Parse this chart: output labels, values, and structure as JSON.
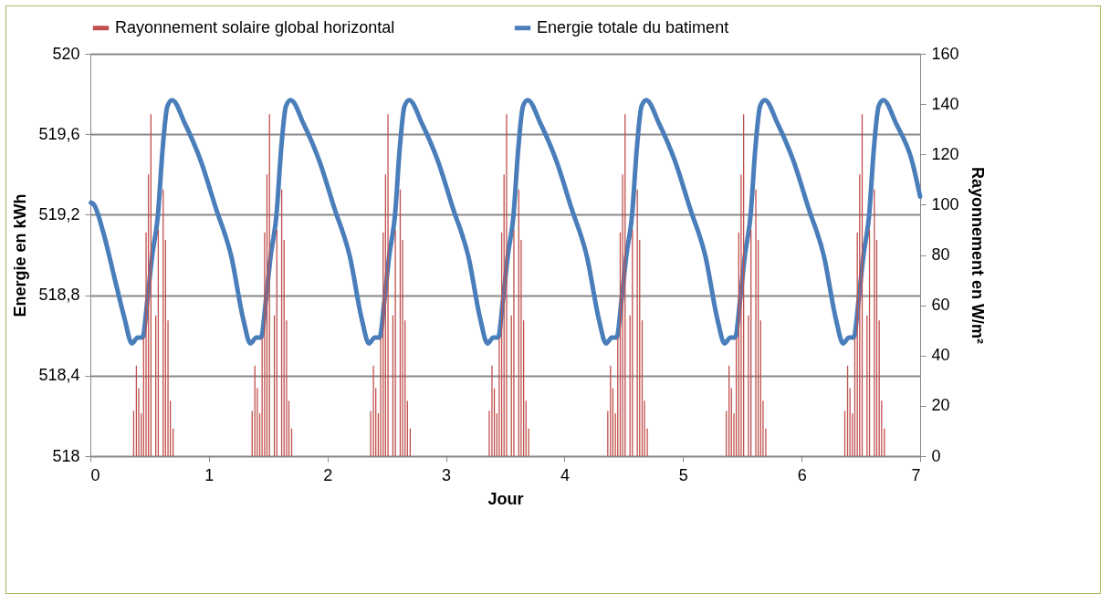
{
  "chart_data": {
    "type": "line",
    "xlabel": "Jour",
    "ylabel": "Energie en kWh",
    "y2label": "Rayonnement en W/m²",
    "xlim": [
      0,
      7
    ],
    "xticks": [
      0,
      1,
      2,
      3,
      4,
      5,
      6,
      7
    ],
    "ylim": [
      518,
      520
    ],
    "yticks": [
      {
        "value": 518,
        "label": "518"
      },
      {
        "value": 518.4,
        "label": "518,4"
      },
      {
        "value": 518.8,
        "label": "518,8"
      },
      {
        "value": 519.2,
        "label": "519,2"
      },
      {
        "value": 519.6,
        "label": "519,6"
      },
      {
        "value": 520,
        "label": "520"
      }
    ],
    "y2lim": [
      0,
      160
    ],
    "y2ticks": [
      0,
      20,
      40,
      60,
      80,
      100,
      120,
      140,
      160
    ],
    "grid": "y",
    "legend": "top",
    "series": [
      {
        "name": "Rayonnement solaire global horizontal",
        "type": "bar",
        "axis": "y2",
        "color": "#c0504d",
        "x": [
          0.365,
          0.388,
          0.408,
          0.429,
          0.449,
          0.47,
          0.49,
          0.511,
          0.552,
          0.573,
          0.614,
          0.634,
          0.655,
          0.675,
          0.698,
          1.365,
          1.388,
          1.408,
          1.429,
          1.449,
          1.47,
          1.49,
          1.511,
          1.552,
          1.573,
          1.614,
          1.634,
          1.655,
          1.675,
          1.698,
          2.365,
          2.388,
          2.408,
          2.429,
          2.449,
          2.47,
          2.49,
          2.511,
          2.552,
          2.573,
          2.614,
          2.634,
          2.655,
          2.675,
          2.698,
          3.365,
          3.388,
          3.408,
          3.429,
          3.449,
          3.47,
          3.49,
          3.511,
          3.552,
          3.573,
          3.614,
          3.634,
          3.655,
          3.675,
          3.698,
          4.365,
          4.388,
          4.408,
          4.429,
          4.449,
          4.47,
          4.49,
          4.511,
          4.552,
          4.573,
          4.614,
          4.634,
          4.655,
          4.675,
          4.698,
          5.365,
          5.388,
          5.408,
          5.429,
          5.449,
          5.47,
          5.49,
          5.511,
          5.552,
          5.573,
          5.614,
          5.634,
          5.655,
          5.675,
          5.698,
          6.365,
          6.388,
          6.408,
          6.429,
          6.449,
          6.47,
          6.49,
          6.511,
          6.552,
          6.573,
          6.614,
          6.634,
          6.655,
          6.675,
          6.698
        ],
        "values": [
          18,
          36,
          27,
          17,
          47,
          89,
          112,
          136,
          56,
          90,
          106,
          86,
          54,
          22,
          11,
          18,
          36,
          27,
          17,
          47,
          89,
          112,
          136,
          56,
          90,
          106,
          86,
          54,
          22,
          11,
          18,
          36,
          27,
          17,
          47,
          89,
          112,
          136,
          56,
          90,
          106,
          86,
          54,
          22,
          11,
          18,
          36,
          27,
          17,
          47,
          89,
          112,
          136,
          56,
          90,
          106,
          86,
          54,
          22,
          11,
          18,
          36,
          27,
          17,
          47,
          89,
          112,
          136,
          56,
          90,
          106,
          86,
          54,
          22,
          11,
          18,
          36,
          27,
          17,
          47,
          89,
          112,
          136,
          56,
          90,
          106,
          86,
          54,
          22,
          11,
          18,
          36,
          27,
          17,
          47,
          89,
          112,
          136,
          56,
          90,
          106,
          86,
          54,
          22,
          11
        ]
      },
      {
        "name": "Energie totale du batiment",
        "color": "#4a7ebb",
        "x": [
          0.005,
          0.03,
          0.11,
          0.21,
          0.29,
          0.35,
          0.4,
          0.44,
          0.48,
          0.52,
          0.57,
          0.61,
          0.65,
          0.69,
          0.8,
          0.93,
          1.06,
          1.19,
          1.29,
          1.35,
          1.4,
          1.44,
          1.48,
          1.52,
          1.57,
          1.61,
          1.65,
          1.69,
          1.8,
          1.93,
          2.06,
          2.19,
          2.29,
          2.35,
          2.4,
          2.44,
          2.48,
          2.52,
          2.57,
          2.61,
          2.65,
          2.69,
          2.8,
          2.93,
          3.06,
          3.19,
          3.29,
          3.35,
          3.4,
          3.44,
          3.48,
          3.52,
          3.57,
          3.61,
          3.65,
          3.69,
          3.8,
          3.93,
          4.06,
          4.19,
          4.29,
          4.35,
          4.4,
          4.44,
          4.48,
          4.52,
          4.57,
          4.61,
          4.65,
          4.69,
          4.8,
          4.93,
          5.06,
          5.19,
          5.29,
          5.35,
          5.4,
          5.44,
          5.48,
          5.52,
          5.57,
          5.61,
          5.65,
          5.69,
          5.8,
          5.93,
          6.06,
          6.19,
          6.29,
          6.35,
          6.4,
          6.44,
          6.48,
          6.52,
          6.57,
          6.61,
          6.65,
          6.69,
          6.8,
          6.93,
          7
        ],
        "values": [
          519.26,
          519.25,
          519.11,
          518.87,
          518.68,
          518.56,
          518.59,
          518.59,
          518.77,
          518.99,
          519.2,
          519.53,
          519.74,
          519.77,
          519.65,
          519.47,
          519.23,
          518.99,
          518.68,
          518.56,
          518.59,
          518.59,
          518.77,
          518.99,
          519.2,
          519.53,
          519.74,
          519.77,
          519.65,
          519.47,
          519.23,
          518.99,
          518.68,
          518.56,
          518.59,
          518.59,
          518.77,
          518.99,
          519.2,
          519.53,
          519.74,
          519.77,
          519.65,
          519.47,
          519.23,
          518.99,
          518.68,
          518.56,
          518.59,
          518.59,
          518.77,
          518.99,
          519.2,
          519.53,
          519.74,
          519.77,
          519.65,
          519.47,
          519.23,
          518.99,
          518.68,
          518.56,
          518.59,
          518.59,
          518.77,
          518.99,
          519.2,
          519.53,
          519.74,
          519.77,
          519.65,
          519.47,
          519.23,
          518.99,
          518.68,
          518.56,
          518.59,
          518.59,
          518.77,
          518.99,
          519.2,
          519.53,
          519.74,
          519.77,
          519.65,
          519.47,
          519.23,
          518.99,
          518.68,
          518.56,
          518.59,
          518.59,
          518.77,
          518.99,
          519.2,
          519.53,
          519.74,
          519.77,
          519.65,
          519.47,
          519.29
        ]
      }
    ]
  }
}
